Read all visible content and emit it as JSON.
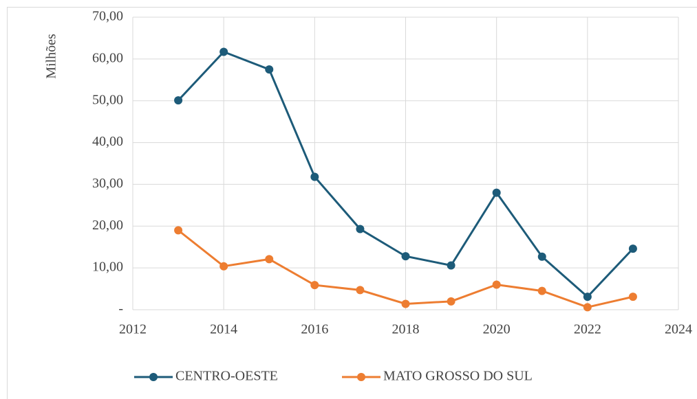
{
  "chart_data": {
    "type": "line",
    "y_label": "Milhões",
    "x": [
      2013,
      2014,
      2015,
      2016,
      2017,
      2018,
      2019,
      2020,
      2021,
      2022,
      2023
    ],
    "series": [
      {
        "name": "CENTRO-OESTE",
        "color": "#1d5b79",
        "values": [
          50.1,
          61.7,
          57.5,
          31.8,
          19.3,
          12.8,
          10.6,
          28.0,
          12.7,
          3.1,
          14.6
        ]
      },
      {
        "name": "MATO GROSSO DO SUL",
        "color": "#ed7d31",
        "values": [
          19.0,
          10.4,
          12.1,
          5.9,
          4.7,
          1.4,
          2.0,
          6.0,
          4.5,
          0.6,
          3.1
        ]
      }
    ],
    "xlim": [
      2012,
      2024
    ],
    "xticks": [
      2012,
      2014,
      2016,
      2018,
      2020,
      2022,
      2024
    ],
    "ylim": [
      0,
      70
    ],
    "yticks": [
      {
        "value": 0,
        "label": "-"
      },
      {
        "value": 10,
        "label": "10,00"
      },
      {
        "value": 20,
        "label": "20,00"
      },
      {
        "value": 30,
        "label": "30,00"
      },
      {
        "value": 40,
        "label": "40,00"
      },
      {
        "value": 50,
        "label": "50,00"
      },
      {
        "value": 60,
        "label": "60,00"
      },
      {
        "value": 70,
        "label": "70,00"
      }
    ],
    "grid": true,
    "legend": "bottom"
  }
}
